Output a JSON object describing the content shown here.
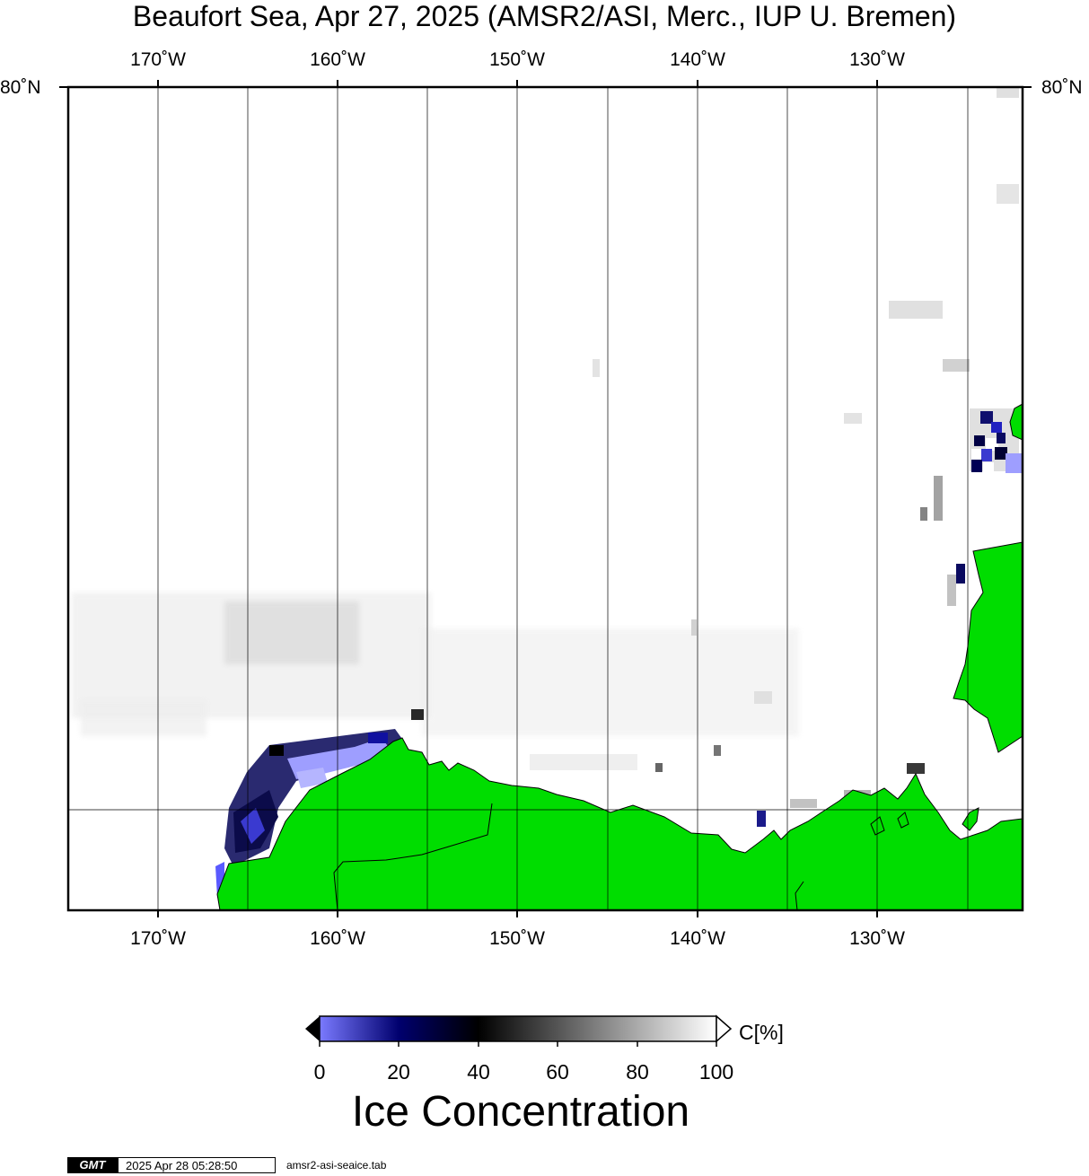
{
  "title": "Beaufort Sea, Apr 27, 2025 (AMSR2/ASI, Merc., IUP U. Bremen)",
  "map": {
    "longitude_labels": [
      "170˚W",
      "160˚W",
      "150˚W",
      "140˚W",
      "130˚W"
    ],
    "latitude_label": "80˚N",
    "land_color": "#00dd00",
    "colors": {
      "open_water": "#ffffff",
      "low_ice": "#6e6eff",
      "mid_ice": "#00007a",
      "black": "#000000"
    }
  },
  "colorbar": {
    "title": "Ice Concentration",
    "unit": "C[%]",
    "ticks": [
      "0",
      "20",
      "40",
      "60",
      "80",
      "100"
    ],
    "range": [
      0,
      100
    ],
    "stops": [
      {
        "value": 0,
        "color": "#7a7aff"
      },
      {
        "value": 20,
        "color": "#00006e"
      },
      {
        "value": 40,
        "color": "#000000"
      },
      {
        "value": 100,
        "color": "#ffffff"
      }
    ]
  },
  "footer": {
    "logo": "GMT",
    "timestamp": "2025 Apr 28 05:28:50",
    "filename": "amsr2-asi-seaice.tab"
  }
}
